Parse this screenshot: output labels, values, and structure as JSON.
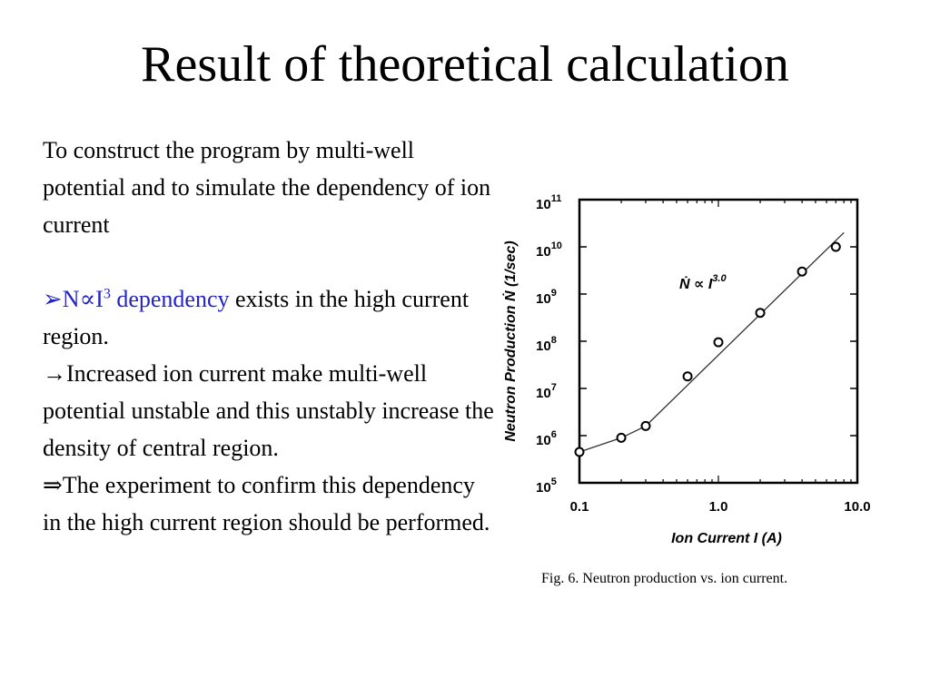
{
  "slide": {
    "title": "Result of theoretical calculation",
    "intro": "To construct the program by multi-well potential and to simulate the dependency of ion current",
    "bullet_marker": "➢",
    "bullet_accent": "N∝I",
    "bullet_exponent": "3",
    "bullet_accent_tail": " dependency",
    "bullet_rest": " exists in the high current region.",
    "arrow_item": "→Increased ion current make multi-well potential unstable and this unstably increase the density of central region.",
    "conclusion": "⇒The experiment to confirm this dependency in the high current region should be performed.",
    "accent_color": "#2323c8"
  },
  "chart_data": {
    "type": "scatter",
    "x_scale": "log",
    "y_scale": "log",
    "xlim": [
      0.1,
      10.0
    ],
    "ylim": [
      100000,
      100000000000
    ],
    "xlabel": "Ion Current  I  (A)",
    "ylabel": "Neutron  Production   Ṅ   (1/sec)",
    "x_tick_labels": [
      "0.1",
      "1.0",
      "10.0"
    ],
    "y_tick_labels": [
      {
        "base": "10",
        "exp": "5"
      },
      {
        "base": "10",
        "exp": "6"
      },
      {
        "base": "10",
        "exp": "7"
      },
      {
        "base": "10",
        "exp": "8"
      },
      {
        "base": "10",
        "exp": "9"
      },
      {
        "base": "10",
        "exp": "10"
      },
      {
        "base": "10",
        "exp": "11"
      }
    ],
    "annotation": {
      "text": "Ṅ ∝ I",
      "exp": "3.0"
    },
    "caption": "Fig. 6.  Neutron production vs. ion current.",
    "series": [
      {
        "points": [
          {
            "x": 0.1,
            "y": 450000
          },
          {
            "x": 0.2,
            "y": 900000
          },
          {
            "x": 0.3,
            "y": 1600000
          },
          {
            "x": 0.6,
            "y": 18000000
          },
          {
            "x": 1.0,
            "y": 95000000
          },
          {
            "x": 2.0,
            "y": 400000000
          },
          {
            "x": 4.0,
            "y": 3000000000
          },
          {
            "x": 7.0,
            "y": 10000000000
          }
        ],
        "line": [
          {
            "x": 0.1,
            "y": 450000
          },
          {
            "x": 0.2,
            "y": 900000
          },
          {
            "x": 0.3,
            "y": 1600000
          },
          {
            "x": 8.0,
            "y": 20000000000
          }
        ]
      }
    ]
  }
}
